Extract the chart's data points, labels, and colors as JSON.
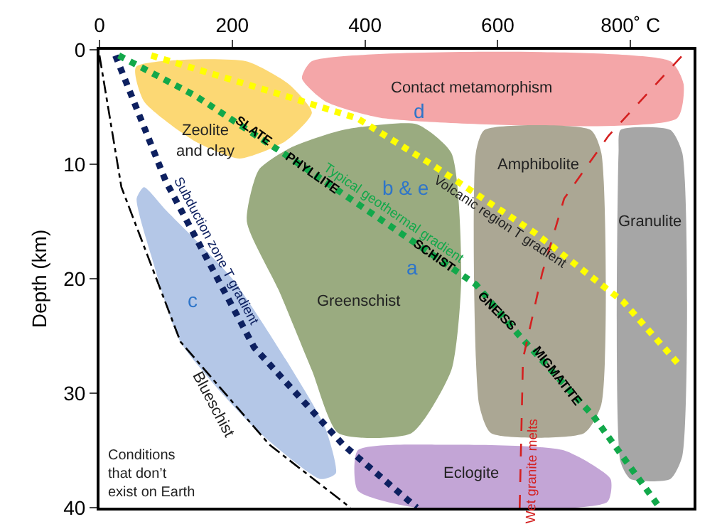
{
  "chart_data": {
    "type": "line",
    "ylabel": "Depth (km)",
    "xlim": [
      0,
      895
    ],
    "ylim": [
      40,
      0
    ],
    "xticks": [
      0,
      200,
      400,
      600,
      {
        "value": 800,
        "label": "800˚ C"
      }
    ],
    "yticks": [
      0,
      10,
      20,
      30,
      40
    ],
    "grid": false,
    "legend": false,
    "marker": "none",
    "series": [
      {
        "name": "Contact metamorphism",
        "type": "area",
        "color": "#f4a6a8",
        "x": [
          320,
          860,
          880,
          870,
          430,
          340,
          305
        ],
        "values": [
          1,
          1,
          3,
          6,
          6,
          4.5,
          2.5
        ]
      },
      {
        "name": "Zeolite\nand clay",
        "type": "area",
        "color": "#fcd874",
        "x": [
          55,
          220,
          285,
          320,
          280,
          211,
          144,
          67
        ],
        "values": [
          1.5,
          1,
          3,
          5.5,
          8,
          9.5,
          8,
          4.5
        ]
      },
      {
        "name": "Greenschist",
        "type": "area",
        "color": "#9aab80",
        "x": [
          240,
          290,
          367,
          478,
          530,
          545,
          530,
          470,
          360,
          320,
          270,
          222
        ],
        "values": [
          10.5,
          8.5,
          7,
          6.5,
          9,
          20,
          28,
          33.5,
          33.5,
          28,
          21,
          15
        ]
      },
      {
        "name": "Amphibolite",
        "type": "area",
        "color": "#aba794",
        "x": [
          580,
          740,
          756,
          756,
          730,
          590,
          572,
          567
        ],
        "values": [
          7,
          7,
          9,
          31,
          33.5,
          33.5,
          31,
          9
        ]
      },
      {
        "name": "Granulite",
        "type": "area",
        "color": "#a6a6a6",
        "x": [
          785,
          860,
          878,
          878,
          860,
          800,
          785,
          782
        ],
        "values": [
          7,
          7,
          9,
          35.5,
          37.5,
          37.5,
          36,
          9
        ]
      },
      {
        "name": "Blueschist",
        "type": "area",
        "color": "#b4c7e7",
        "x": [
          67,
          100,
          200,
          280,
          340,
          356,
          333,
          233,
          122,
          78,
          56
        ],
        "values": [
          12,
          14,
          20,
          27,
          33,
          37,
          37.5,
          33,
          25.5,
          18,
          13
        ]
      },
      {
        "name": "Eclogite",
        "type": "area",
        "color": "#c3a5d6",
        "x": [
          389,
          522,
          700,
          770,
          765,
          478,
          389
        ],
        "values": [
          35,
          34.5,
          35,
          37.5,
          39.5,
          40,
          38.5
        ]
      },
      {
        "color": "#000000",
        "line_style": "dashdot",
        "x": [
          0,
          33,
          122,
          256,
          378
        ],
        "values": [
          0.5,
          12,
          25.5,
          34.5,
          40
        ]
      },
      {
        "name": "Subduction zone T gradient",
        "color": "#0d2060",
        "line_style": "dotted",
        "x": [
          24,
          100,
          233,
          367,
          478
        ],
        "values": [
          0.5,
          11.5,
          26,
          34.5,
          40
        ]
      },
      {
        "name": "Typical geothermal gradient",
        "color": "#12a84a",
        "line_style": "dotted",
        "x": [
          29,
          144,
          289,
          567,
          633,
          744,
          844
        ],
        "values": [
          0.5,
          4,
          9.5,
          20.5,
          25,
          32,
          40
        ]
      },
      {
        "name": "Volcanic region T gradient",
        "color": "#ffff00",
        "line_style": "dotted",
        "x": [
          78,
          278,
          389,
          500,
          656,
          789,
          873
        ],
        "values": [
          0.5,
          4,
          6,
          10,
          16,
          22,
          27.5
        ]
      },
      {
        "name": "Wet granite melts",
        "color": "#d42020",
        "line_style": "dashed",
        "x": [
          633,
          638,
          667,
          700,
          767,
          878
        ],
        "values": [
          40,
          27,
          19.5,
          13,
          7.5,
          0.5
        ]
      }
    ],
    "annotations": [
      {
        "text": "SLATE",
        "x": 233,
        "y": 7.1
      },
      {
        "text": "PHYLLITE",
        "x": 322,
        "y": 10.8
      },
      {
        "text": "SCHIST",
        "x": 505,
        "y": 18
      },
      {
        "text": "GNEISS",
        "x": 600,
        "y": 22.8
      },
      {
        "text": "MIGMATITE",
        "x": 689,
        "y": 28.5
      },
      "a",
      "b & e",
      "c",
      "d",
      "Conditions\nthat don’t\nexist on Earth"
    ]
  }
}
